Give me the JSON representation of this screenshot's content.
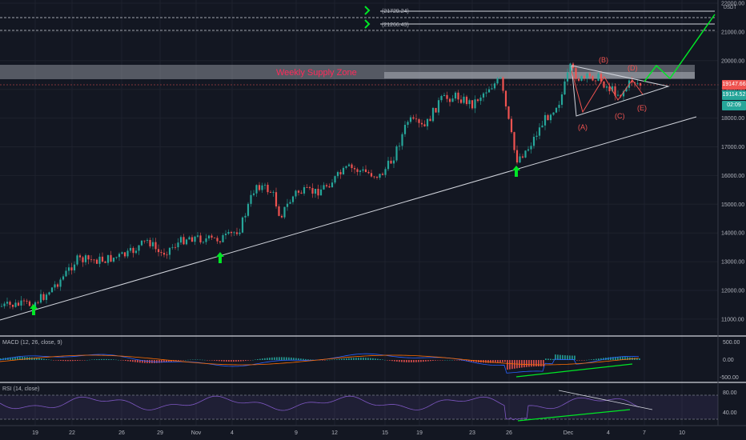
{
  "price_axis": {
    "currency": "USDT",
    "ticks": [
      "22000.00",
      "21000.00",
      "20000.00",
      "19000.00",
      "18000.00",
      "17000.00",
      "16000.00",
      "15000.00",
      "14000.00",
      "13000.00",
      "12000.00",
      "11000.00"
    ],
    "last_price": "19147.66",
    "current_price": "19114.52",
    "countdown": "02:09"
  },
  "levels": [
    {
      "label": "(21729.24)"
    },
    {
      "label": "(21266.43)"
    }
  ],
  "zone": {
    "label": "Weekly Supply Zone"
  },
  "waves": [
    "(A)",
    "(B)",
    "(C)",
    "(D)",
    "(E)"
  ],
  "macd": {
    "label": "MACD (12, 26, close, 9)",
    "ticks": [
      "500.00",
      "0.00",
      "-500.00"
    ]
  },
  "rsi": {
    "label": "RSI (14, close)",
    "ticks": [
      "80.00",
      "40.00"
    ]
  },
  "time_axis": [
    "19",
    "22",
    "26",
    "29",
    "Nov",
    "4",
    "9",
    "12",
    "15",
    "19",
    "23",
    "26",
    "Dec",
    "4",
    "7",
    "10"
  ],
  "colors": {
    "background": "#131722",
    "up": "#26a69a",
    "down": "#ef5350",
    "projection": "#00e626",
    "zone_text": "#ff2a5a",
    "macd_line": "#2962ff",
    "signal_line": "#ff6d00",
    "rsi_line": "#7e57c2"
  },
  "icons": [
    "green-up-arrow-icon",
    "green-chevron-icon"
  ]
}
